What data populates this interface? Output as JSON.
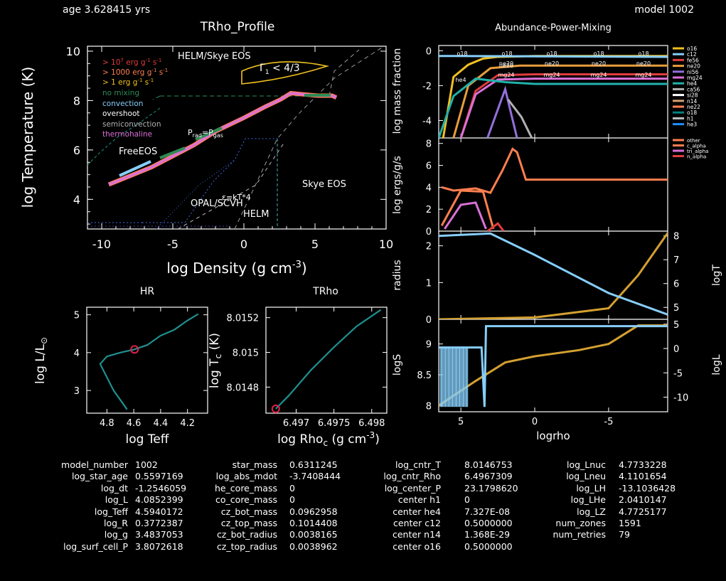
{
  "header": {
    "age": "age 3.628415 yrs",
    "model": "model 1002"
  },
  "trho_profile": {
    "title": "TRho_Profile",
    "xlabel": "log Density (g cm",
    "xlabel_sup": "-3",
    "xlabel_close": ")",
    "ylabel": "log Temperature (K)",
    "xticks": [
      "-10",
      "-5",
      "0",
      "5",
      "10"
    ],
    "yticks": [
      "4",
      "6",
      "8",
      "10"
    ],
    "legend": [
      {
        "text": "> 10",
        "sup": "7",
        "rest": " erg g",
        "sup2": "-1",
        "rest2": " s",
        "sup3": "-1",
        "color": "#e03c3c"
      },
      {
        "text": "> 1000 erg g",
        "sup": "-1",
        "rest": " s",
        "sup2": "-1",
        "color": "#ff7f50"
      },
      {
        "text": "> 1 erg g",
        "sup": "-1",
        "rest": " s",
        "sup2": "-1",
        "color": "#f0c020"
      },
      {
        "text": "no mixing",
        "color": "#2e8b57"
      },
      {
        "text": "convection",
        "color": "#87cefa"
      },
      {
        "text": "overshoot",
        "color": "#ffffff"
      },
      {
        "text": "semiconvection",
        "color": "#b0b0b0"
      },
      {
        "text": "thermohaline",
        "color": "#da70d6"
      }
    ],
    "annotations": {
      "helm_skye": "HELM/Skye EOS",
      "gamma": "Γ",
      "gamma_sub": "1",
      "gamma_rest": " < 4/3",
      "freeeos": "FreeEOS",
      "prad": "P",
      "prad_sub": "rad",
      "prad_eq": "=P",
      "prad_sub2": "gas",
      "skye": "Skye EOS",
      "opal": "OPAL/SCVH",
      "helm": "HELM",
      "ef": "ε",
      "ef_rest": "=kT*4"
    }
  },
  "hr": {
    "title": "HR",
    "xlabel": "log Teff",
    "ylabel": "log L/L",
    "ylabel_sub": "⊙",
    "xticks": [
      "4.8",
      "4.6",
      "4.4",
      "4.2"
    ],
    "yticks": [
      "3",
      "4",
      "5"
    ]
  },
  "trho": {
    "title": "TRho",
    "xlabel": "log Rho",
    "xlabel_sub": "c",
    "xlabel_rest": " (g cm",
    "xlabel_sup": "-3",
    "xlabel_close": ")",
    "ylabel": "log T",
    "ylabel_sub": "c",
    "ylabel_rest": " (K)",
    "xticks": [
      "6.497",
      "6.4975",
      "6.498"
    ],
    "yticks": [
      "8.0148",
      "8.015",
      "8.0152"
    ]
  },
  "abundance": {
    "title": "Abundance-Power-Mixing",
    "xlabel": "logrho",
    "ylabel_abund": "log mass fraction",
    "ylabel_power": "log ergs/g/s",
    "yticks_abund": [
      "-4",
      "-2",
      "0"
    ],
    "yticks_power": [
      "0",
      "2",
      "4",
      "6",
      "8"
    ],
    "yticks_radius": [
      "0",
      "1",
      "2"
    ],
    "yticks_logT": [
      "5",
      "6",
      "7",
      "8"
    ],
    "yticks_logS": [
      "8",
      "8.5",
      "9"
    ],
    "yticks_logL": [
      "-10",
      "-5",
      "0",
      "5"
    ],
    "xticks": [
      "5",
      "0",
      "-5"
    ],
    "radius_label": "radius",
    "logT_label": "logT",
    "logS_label": "logS",
    "logL_label": "logL",
    "iso_legend": [
      {
        "name": "o16",
        "color": "#f0c020"
      },
      {
        "name": "c12",
        "color": "#87cefa"
      },
      {
        "name": "fe56",
        "color": "#e03c3c"
      },
      {
        "name": "ne20",
        "color": "#e69d3c"
      },
      {
        "name": "ni56",
        "color": "#9370db"
      },
      {
        "name": "mg24",
        "color": "#da70d6"
      },
      {
        "name": "he4",
        "color": "#20b2aa"
      },
      {
        "name": "ca56",
        "color": "#b0b0b0"
      },
      {
        "name": "si28",
        "color": "#ffffff"
      },
      {
        "name": "n14",
        "color": "#d2a070"
      },
      {
        "name": "ne22",
        "color": "#ff7f50"
      },
      {
        "name": "o18",
        "color": "#008080"
      },
      {
        "name": "h1",
        "color": "#c0c0c0"
      },
      {
        "name": "he3",
        "color": "#1e90ff"
      }
    ],
    "power_legend": [
      {
        "name": "other",
        "color": "#ff7f50"
      },
      {
        "name": "c_alpha",
        "color": "#ff7f50"
      },
      {
        "name": "tri_alpha",
        "color": "#da70d6"
      },
      {
        "name": "n_alpha",
        "color": "#e03c3c"
      }
    ],
    "inline_labels": [
      "o18",
      "o18",
      "o18",
      "o18",
      "o18",
      "ne20",
      "ne20",
      "ne20",
      "ne20",
      "ne20",
      "he4",
      "mg24",
      "mg24",
      "mg24",
      "mg24"
    ]
  },
  "info": {
    "col1": [
      {
        "k": "model_number",
        "v": "1002"
      },
      {
        "k": "log_star_age",
        "v": "0.5597169"
      },
      {
        "k": "log_dt",
        "v": "-1.2546059"
      },
      {
        "k": "log_L",
        "v": "4.0852399"
      },
      {
        "k": "log_Teff",
        "v": "4.5940172"
      },
      {
        "k": "log_R",
        "v": "0.3772387"
      },
      {
        "k": "log_g",
        "v": "3.4837053"
      },
      {
        "k": "log_surf_cell_P",
        "v": "3.8072618"
      }
    ],
    "col2": [
      {
        "k": "star_mass",
        "v": "0.6311245"
      },
      {
        "k": "log_abs_mdot",
        "v": "-3.7408444"
      },
      {
        "k": "he_core_mass",
        "v": "0"
      },
      {
        "k": "co_core_mass",
        "v": "0"
      },
      {
        "k": "cz_bot_mass",
        "v": "0.0962958"
      },
      {
        "k": "cz_top_mass",
        "v": "0.1014408"
      },
      {
        "k": "cz_bot_radius",
        "v": "0.0038165"
      },
      {
        "k": "cz_top_radius",
        "v": "0.0038962"
      }
    ],
    "col3": [
      {
        "k": "log_cntr_T",
        "v": "8.0146753"
      },
      {
        "k": "log_cntr_Rho",
        "v": "6.4967309"
      },
      {
        "k": "log_center_P",
        "v": "23.1798620"
      },
      {
        "k": "center h1",
        "v": "0"
      },
      {
        "k": "center he4",
        "v": "7.327E-08"
      },
      {
        "k": "center c12",
        "v": "0.5000000"
      },
      {
        "k": "center n14",
        "v": "1.368E-29"
      },
      {
        "k": "center o16",
        "v": "0.5000000"
      }
    ],
    "col4": [
      {
        "k": "log_Lnuc",
        "v": "4.7733228"
      },
      {
        "k": "log_Lneu",
        "v": "4.1101654"
      },
      {
        "k": "log_LH",
        "v": "-13.1036428"
      },
      {
        "k": "log_LHe",
        "v": "2.0410147"
      },
      {
        "k": "log_LZ",
        "v": "4.7725177"
      },
      {
        "k": "num_zones",
        "v": "1591"
      },
      {
        "k": "num_retries",
        "v": "79"
      }
    ]
  },
  "chart_data": [
    {
      "type": "line",
      "title": "TRho_Profile",
      "xlabel": "log Density (g cm^-3)",
      "ylabel": "log Temperature (K)",
      "xlim": [
        -11,
        10
      ],
      "ylim": [
        2.8,
        10.2
      ],
      "series": [
        {
          "name": "profile",
          "x": [
            -9.5,
            -8,
            -6.5,
            -5,
            -3.5,
            -2,
            0,
            1.5,
            2.6,
            3.3,
            4.2,
            5.2,
            6.2,
            6.5
          ],
          "y": [
            4.6,
            4.95,
            5.3,
            5.75,
            6.2,
            6.75,
            7.3,
            7.75,
            8.05,
            8.3,
            8.25,
            8.2,
            8.2,
            8.12
          ]
        }
      ]
    },
    {
      "type": "line",
      "title": "HR",
      "xlabel": "log Teff",
      "ylabel": "log L/L⊙",
      "xlim": [
        4.95,
        4.05
      ],
      "ylim": [
        2.4,
        5.2
      ],
      "series": [
        {
          "name": "track",
          "x": [
            4.65,
            4.75,
            4.85,
            4.8,
            4.7,
            4.6,
            4.5,
            4.4,
            4.3,
            4.2,
            4.12
          ],
          "y": [
            2.5,
            3.0,
            3.7,
            3.9,
            4.0,
            4.08,
            4.2,
            4.45,
            4.6,
            4.85,
            5.02
          ]
        }
      ],
      "marker": {
        "x": 4.594,
        "y": 4.085
      }
    },
    {
      "type": "line",
      "title": "TRho",
      "xlabel": "log Rho_c (g cm^-3)",
      "ylabel": "log T_c (K)",
      "xlim": [
        6.4966,
        6.4982
      ],
      "ylim": [
        8.01465,
        8.01526
      ],
      "series": [
        {
          "name": "center",
          "x": [
            6.49673,
            6.4969,
            6.4972,
            6.4975,
            6.4978,
            6.49812
          ],
          "y": [
            8.014675,
            8.01475,
            8.0149,
            8.01503,
            8.01515,
            8.015245
          ]
        }
      ],
      "marker": {
        "x": 6.49673,
        "y": 8.014675
      }
    },
    {
      "type": "line",
      "title": "Abundance-Power-Mixing",
      "xlabel": "logrho",
      "xlim": [
        6.5,
        -9
      ],
      "panels": [
        {
          "name": "abundance",
          "ylim": [
            -5,
            0.3
          ],
          "series": [
            {
              "name": "o16",
              "x": [
                6.2,
                5.5,
                4.5,
                3.5,
                2.5,
                0,
                -9
              ],
              "y": [
                -5,
                -1.5,
                -0.8,
                -0.45,
                -0.35,
                -0.3,
                -0.3
              ]
            },
            {
              "name": "c12",
              "x": [
                6.5,
                -9
              ],
              "y": [
                -0.3,
                -0.35
              ]
            },
            {
              "name": "ne20",
              "x": [
                5.5,
                4.5,
                3,
                1,
                -9
              ],
              "y": [
                -5,
                -2,
                -1,
                -0.85,
                -0.85
              ]
            },
            {
              "name": "fe56",
              "x": [
                5,
                4,
                2.5,
                0,
                -9
              ],
              "y": [
                -5,
                -2.3,
                -1.4,
                -1.35,
                -1.35
              ]
            },
            {
              "name": "mg24",
              "x": [
                5,
                4,
                2.5,
                0,
                -9
              ],
              "y": [
                -5,
                -2.5,
                -1.65,
                -1.6,
                -1.6
              ]
            },
            {
              "name": "he4",
              "x": [
                6.5,
                5.5,
                4,
                2,
                0,
                -9
              ],
              "y": [
                -5,
                -2.6,
                -1.6,
                -1.8,
                -1.9,
                -1.9
              ]
            },
            {
              "name": "ni56",
              "x": [
                3.2,
                2,
                1.2
              ],
              "y": [
                -5,
                -2.2,
                -5
              ]
            },
            {
              "name": "ca56",
              "x": [
                1.8,
                0.9,
                0.2
              ],
              "y": [
                -2.8,
                -3.8,
                -5
              ]
            }
          ]
        },
        {
          "name": "power",
          "ylim": [
            0,
            8.5
          ],
          "series": [
            {
              "name": "c_alpha",
              "x": [
                6.3,
                5.5,
                4,
                3,
                2.2,
                1.5,
                1.2,
                0.6,
                -9
              ],
              "y": [
                4.0,
                3.7,
                3.9,
                3.5,
                5.5,
                7.5,
                7.2,
                4.7,
                4.7
              ]
            },
            {
              "name": "other",
              "x": [
                6.3,
                5,
                3.5,
                2.8
              ],
              "y": [
                0.5,
                3.7,
                3.6,
                0.2
              ]
            },
            {
              "name": "tri_alpha",
              "x": [
                6.1,
                5,
                4,
                3.3
              ],
              "y": [
                0.2,
                2.4,
                2.6,
                0.2
              ]
            },
            {
              "name": "n_alpha",
              "x": [
                3.2,
                2.5,
                2.1
              ],
              "y": [
                0,
                0.7,
                0
              ]
            }
          ]
        },
        {
          "name": "radius_logT",
          "ylim_radius": [
            0,
            2.4
          ],
          "ylim_logT": [
            4.5,
            8.2
          ],
          "series": [
            {
              "name": "radius",
              "x": [
                6.5,
                0,
                -5,
                -7,
                -9
              ],
              "y": [
                0.0,
                0.05,
                0.3,
                1.2,
                2.35
              ]
            },
            {
              "name": "logT",
              "x": [
                6.5,
                3,
                0,
                -5,
                -9
              ],
              "y": [
                8.0,
                8.1,
                7.2,
                5.6,
                4.7
              ]
            }
          ]
        },
        {
          "name": "logS_logL",
          "ylim_logS": [
            7.9,
            9.4
          ],
          "ylim_logL": [
            -13,
            6
          ],
          "series": [
            {
              "name": "logS",
              "x": [
                6.5,
                4,
                2,
                0,
                -3,
                -5,
                -7,
                -9
              ],
              "y": [
                8.0,
                8.4,
                8.7,
                8.8,
                8.9,
                9.0,
                9.3,
                9.3
              ]
            },
            {
              "name": "logL",
              "x": [
                6.5,
                3.6,
                3.4,
                3.3,
                -9
              ],
              "y": [
                0.2,
                0.2,
                -12,
                4.6,
                4.6
              ]
            }
          ]
        }
      ]
    }
  ]
}
